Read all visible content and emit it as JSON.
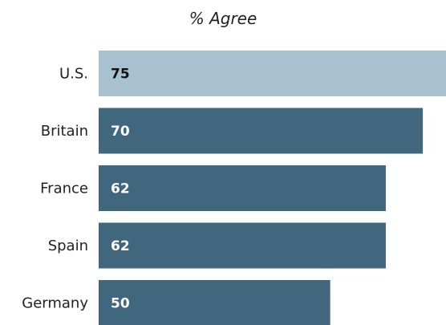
{
  "chart_data": {
    "type": "bar",
    "orientation": "horizontal",
    "subtitle": "% Agree",
    "categories": [
      "U.S.",
      "Britain",
      "France",
      "Spain",
      "Germany"
    ],
    "values": [
      75,
      70,
      62,
      62,
      50
    ],
    "value_labels": [
      "75",
      "70",
      "62",
      "62",
      "50"
    ],
    "xlim": [
      0,
      75
    ],
    "grid": false,
    "legend": "none",
    "colors": {
      "highlight_bar": "#a8c1d0",
      "bar": "#41677f",
      "highlight_label": "#111111",
      "label": "#ffffff"
    },
    "highlight_index": 0
  }
}
